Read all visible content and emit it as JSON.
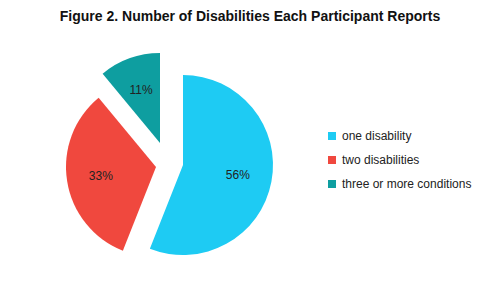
{
  "chart_data": {
    "type": "pie",
    "title": "Figure 2. Number of Disabilities Each Participant Reports",
    "categories": [
      "one disability",
      "two disabilities",
      "three or more conditions"
    ],
    "values": [
      56,
      33,
      11
    ],
    "value_labels": [
      "56%",
      "33%",
      "11%"
    ],
    "colors": [
      "#1ECBF3",
      "#F0483E",
      "#0E9EA0"
    ],
    "data_labels": true,
    "legend": "right"
  }
}
